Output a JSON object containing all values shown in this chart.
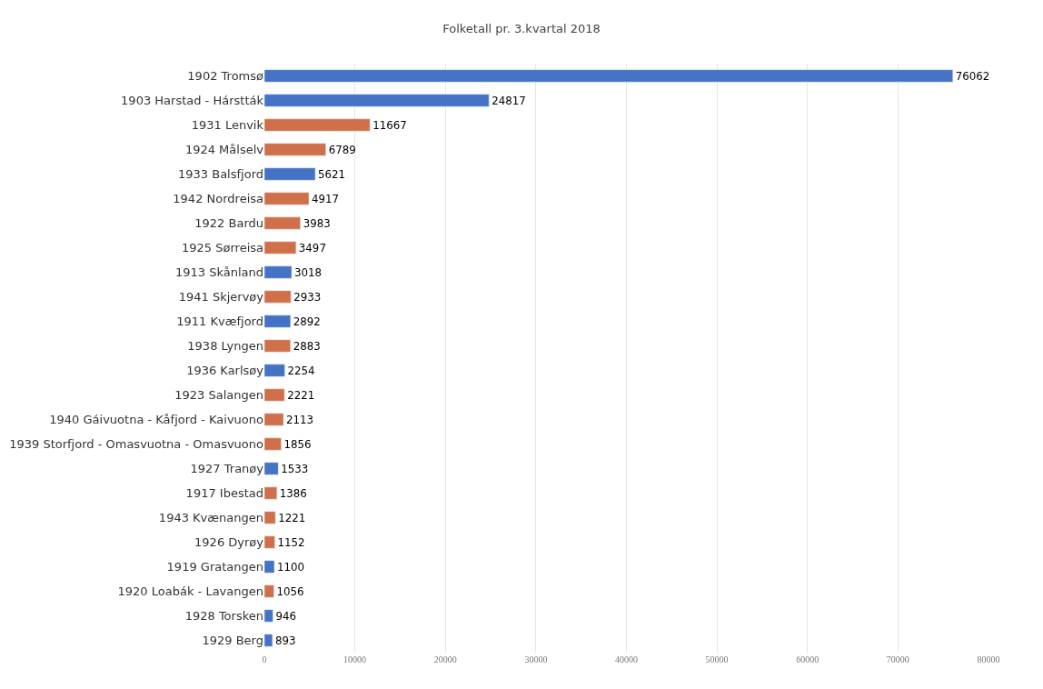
{
  "chart_data": {
    "type": "bar",
    "title": "Folketall pr. 3.kvartal 2018",
    "orientation": "horizontal",
    "categories": [
      "1902 Tromsø",
      "1903 Harstad - Hárstták",
      "1931 Lenvik",
      "1924 Målselv",
      "1933 Balsfjord",
      "1942 Nordreisa",
      "1922 Bardu",
      "1925 Sørreisa",
      "1913 Skånland",
      "1941 Skjervøy",
      "1911 Kvæfjord",
      "1938 Lyngen",
      "1936 Karlsøy",
      "1923 Salangen",
      "1940 Gáivuotna - Kåfjord - Kaivuono",
      "1939 Storfjord - Omasvuotna - Omasvuono",
      "1927 Tranøy",
      "1917 Ibestad",
      "1943 Kvænangen",
      "1926 Dyrøy",
      "1919 Gratangen",
      "1920 Loabák - Lavangen",
      "1928 Torsken",
      "1929 Berg"
    ],
    "values": [
      76062,
      24817,
      11667,
      6789,
      5621,
      4917,
      3983,
      3497,
      3018,
      2933,
      2892,
      2883,
      2254,
      2221,
      2113,
      1856,
      1533,
      1386,
      1221,
      1152,
      1100,
      1056,
      946,
      893
    ],
    "colors": [
      "#4472c4",
      "#4472c4",
      "#d0704a",
      "#d0704a",
      "#4472c4",
      "#d0704a",
      "#d0704a",
      "#d0704a",
      "#4472c4",
      "#d0704a",
      "#4472c4",
      "#d0704a",
      "#4472c4",
      "#d0704a",
      "#d0704a",
      "#d0704a",
      "#4472c4",
      "#d0704a",
      "#d0704a",
      "#d0704a",
      "#4472c4",
      "#d0704a",
      "#4472c4",
      "#4472c4"
    ],
    "xlim": [
      0,
      80000
    ],
    "xticks": [
      0,
      10000,
      20000,
      30000,
      40000,
      50000,
      60000,
      70000,
      80000
    ],
    "grid": "x",
    "data_labels": true
  }
}
